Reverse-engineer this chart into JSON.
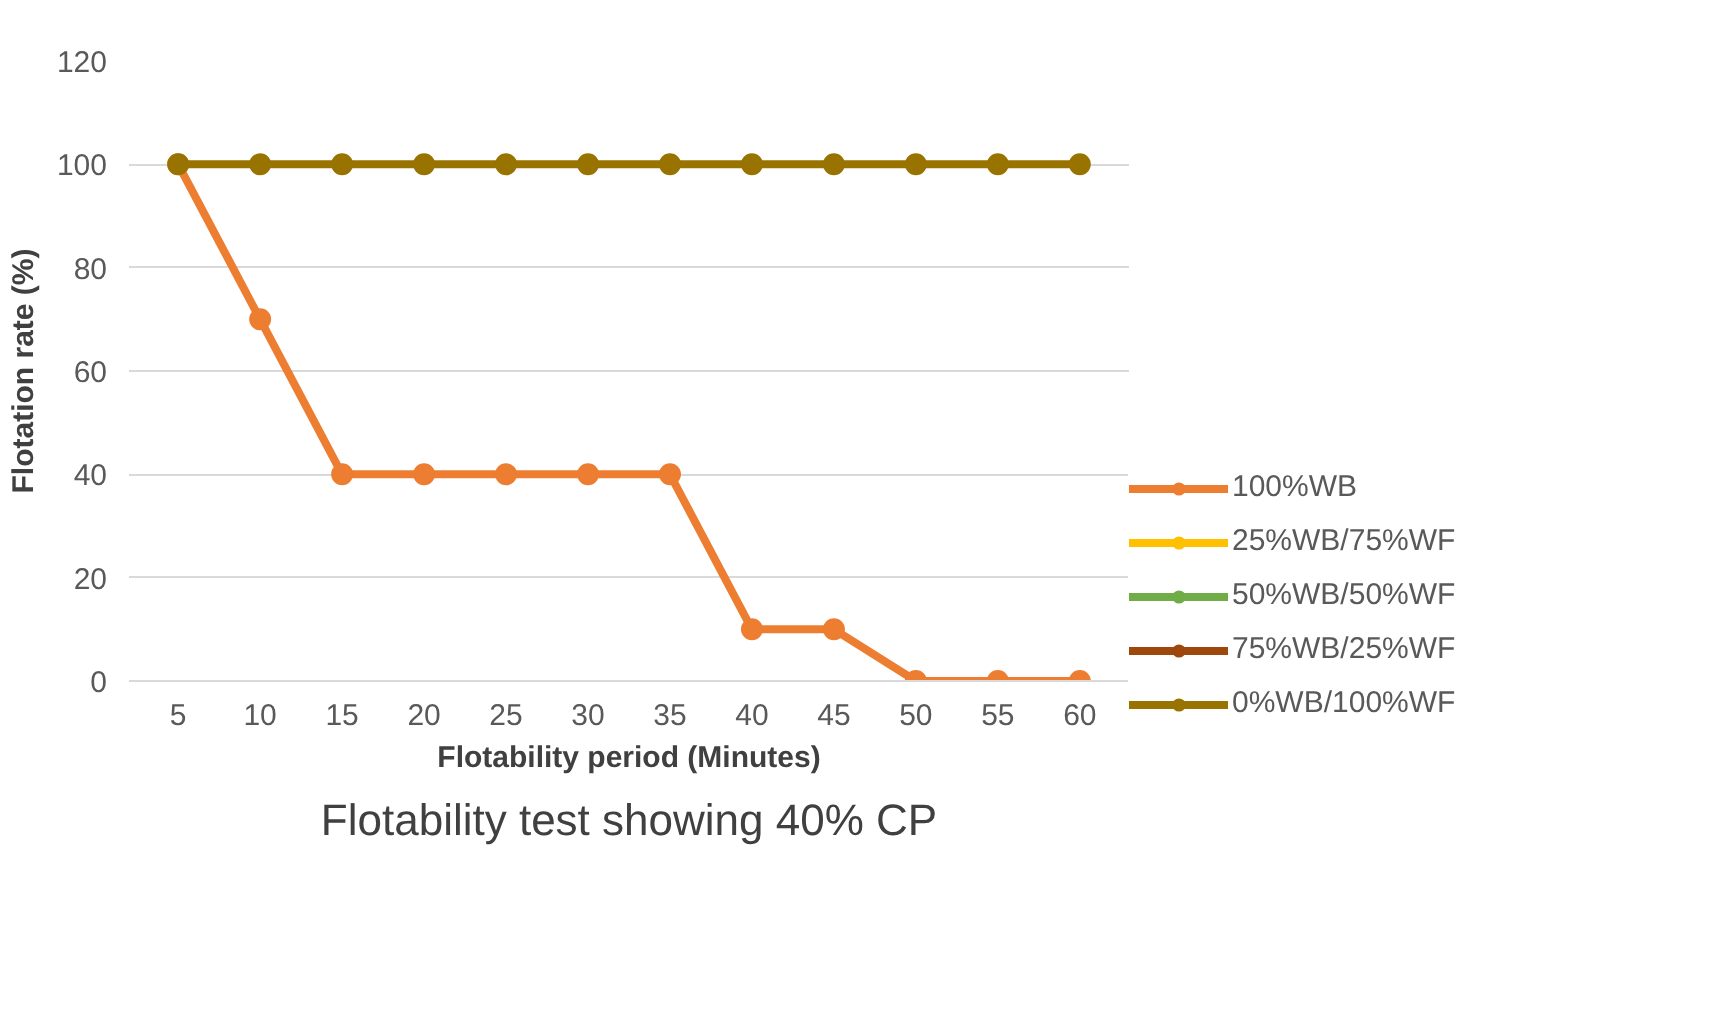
{
  "chart_data": {
    "type": "line",
    "title": "Flotability test showing 40% CP",
    "xlabel": "Flotability period (Minutes)",
    "ylabel": "Flotation rate (%)",
    "categories": [
      "5",
      "10",
      "15",
      "20",
      "25",
      "30",
      "35",
      "40",
      "45",
      "50",
      "55",
      "60"
    ],
    "series": [
      {
        "name": "100%WB",
        "color": "#ed7d31",
        "values": [
          100,
          70,
          40,
          40,
          40,
          40,
          40,
          10,
          10,
          0,
          0,
          0
        ]
      },
      {
        "name": "25%WB/75%WF",
        "color": "#ffc000",
        "values": [
          null,
          null,
          null,
          null,
          null,
          null,
          null,
          null,
          null,
          null,
          null,
          null
        ]
      },
      {
        "name": "50%WB/50%WF",
        "color": "#70ad47",
        "values": [
          null,
          null,
          null,
          null,
          null,
          null,
          null,
          null,
          null,
          null,
          null,
          null
        ]
      },
      {
        "name": "75%WB/25%WF",
        "color": "#9e480e",
        "values": [
          null,
          null,
          null,
          null,
          null,
          null,
          null,
          null,
          null,
          null,
          null,
          null
        ]
      },
      {
        "name": "0%WB/100%WF",
        "color": "#997300",
        "values": [
          100,
          100,
          100,
          100,
          100,
          100,
          100,
          100,
          100,
          100,
          100,
          100
        ]
      }
    ],
    "ylim": [
      0,
      120
    ],
    "yticks": [
      0,
      20,
      40,
      60,
      80,
      100,
      120
    ],
    "grid": "y",
    "legend": "right",
    "marker": "circle",
    "line_style": "solid"
  }
}
